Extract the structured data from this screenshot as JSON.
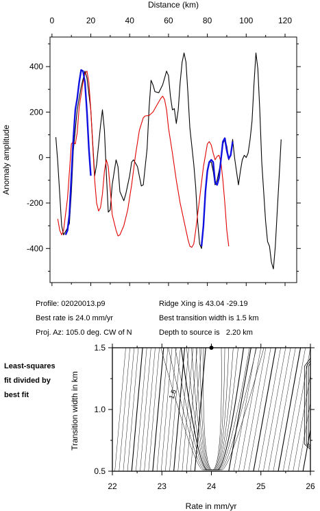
{
  "info": {
    "profile": "Profile: 02020013.p9",
    "ridge_xing": "Ridge Xing is 43.04 -29.19",
    "best_rate": "Best rate is 24.0 mm/yr",
    "best_width": "Best transition width is 1.5 km",
    "proj_az": "Proj. Az: 105.0 deg. CW of N",
    "depth": "Depth to source is   2.20 km"
  },
  "side_label": [
    "Least-squares",
    "fit divided by",
    "best fit"
  ],
  "chart_data": [
    {
      "type": "line",
      "xlabel": "Distance (km)",
      "ylabel": "Anomaly amplitude",
      "xlim": [
        -1,
        126
      ],
      "ylim": [
        -550,
        530
      ],
      "x_ticks": [
        0,
        20,
        40,
        60,
        80,
        100,
        120
      ],
      "y_ticks": [
        -400,
        -200,
        0,
        200,
        400
      ],
      "grid": false,
      "series": [
        {
          "color": "#000000",
          "role": "observed",
          "points": [
            [
              2,
              90
            ],
            [
              3,
              -20
            ],
            [
              5,
              -300
            ],
            [
              6,
              -340
            ],
            [
              8,
              -310
            ],
            [
              9,
              -290
            ],
            [
              10,
              -150
            ],
            [
              11,
              30
            ],
            [
              13,
              210
            ],
            [
              15,
              310
            ],
            [
              17,
              380
            ],
            [
              18,
              350
            ],
            [
              20,
              210
            ],
            [
              21,
              60
            ],
            [
              22,
              -80
            ],
            [
              23,
              -30
            ],
            [
              25,
              140
            ],
            [
              26,
              210
            ],
            [
              27,
              120
            ],
            [
              28,
              -70
            ],
            [
              29,
              -240
            ],
            [
              30,
              -230
            ],
            [
              31,
              -120
            ],
            [
              33,
              -10
            ],
            [
              34,
              -40
            ],
            [
              35,
              -150
            ],
            [
              37,
              -190
            ],
            [
              38,
              -160
            ],
            [
              40,
              -80
            ],
            [
              41,
              -20
            ],
            [
              42,
              -10
            ],
            [
              44,
              -40
            ],
            [
              46,
              -125
            ],
            [
              47,
              -120
            ],
            [
              49,
              40
            ],
            [
              50,
              220
            ],
            [
              51,
              340
            ],
            [
              52,
              320
            ],
            [
              53,
              290
            ],
            [
              55,
              285
            ],
            [
              57,
              320
            ],
            [
              59,
              380
            ],
            [
              60,
              360
            ],
            [
              61,
              270
            ],
            [
              62,
              210
            ],
            [
              63,
              215
            ],
            [
              64,
              150
            ],
            [
              65,
              210
            ],
            [
              66,
              330
            ],
            [
              67,
              420
            ],
            [
              68,
              460
            ],
            [
              69,
              420
            ],
            [
              70,
              280
            ],
            [
              71,
              130
            ],
            [
              73,
              -30
            ],
            [
              74,
              -130
            ],
            [
              75,
              -280
            ],
            [
              76,
              -380
            ],
            [
              77,
              -400
            ],
            [
              78,
              -300
            ],
            [
              79,
              -140
            ],
            [
              80,
              -60
            ],
            [
              81,
              -20
            ],
            [
              82,
              -20
            ],
            [
              83,
              -60
            ],
            [
              84,
              -120
            ],
            [
              85,
              -100
            ],
            [
              87,
              -20
            ],
            [
              88,
              60
            ],
            [
              89,
              80
            ],
            [
              90,
              50
            ],
            [
              91,
              -10
            ],
            [
              92,
              10
            ],
            [
              93,
              80
            ],
            [
              94,
              0
            ],
            [
              95,
              -60
            ],
            [
              96,
              -120
            ],
            [
              97,
              -60
            ],
            [
              98,
              -10
            ],
            [
              99,
              10
            ],
            [
              100,
              0
            ],
            [
              101,
              20
            ],
            [
              102,
              80
            ],
            [
              103,
              160
            ],
            [
              104,
              320
            ],
            [
              105,
              460
            ],
            [
              106,
              390
            ],
            [
              107,
              210
            ],
            [
              108,
              -20
            ],
            [
              109,
              -150
            ],
            [
              110,
              -280
            ],
            [
              111,
              -370
            ],
            [
              112,
              -390
            ],
            [
              113,
              -460
            ],
            [
              114,
              -490
            ],
            [
              115,
              -390
            ],
            [
              116,
              -230
            ],
            [
              117,
              -80
            ],
            [
              118,
              80
            ]
          ]
        },
        {
          "color": "#e00000",
          "role": "model",
          "points": [
            [
              3,
              -270
            ],
            [
              4,
              -320
            ],
            [
              5,
              -340
            ],
            [
              6,
              -320
            ],
            [
              8,
              -180
            ],
            [
              10,
              60
            ],
            [
              11,
              70
            ],
            [
              12,
              60
            ],
            [
              13,
              110
            ],
            [
              14,
              220
            ],
            [
              16,
              330
            ],
            [
              17,
              370
            ],
            [
              18,
              380
            ],
            [
              19,
              330
            ],
            [
              20,
              210
            ],
            [
              21,
              50
            ],
            [
              22,
              -100
            ],
            [
              23,
              -200
            ],
            [
              24,
              -235
            ],
            [
              25,
              -220
            ],
            [
              26,
              -160
            ],
            [
              27,
              -60
            ],
            [
              28,
              -10
            ],
            [
              29,
              -40
            ],
            [
              30,
              -140
            ],
            [
              31,
              -250
            ],
            [
              33,
              -320
            ],
            [
              34,
              -345
            ],
            [
              35,
              -340
            ],
            [
              37,
              -300
            ],
            [
              39,
              -230
            ],
            [
              41,
              -120
            ],
            [
              43,
              10
            ],
            [
              45,
              120
            ],
            [
              47,
              175
            ],
            [
              48,
              183
            ],
            [
              50,
              185
            ],
            [
              52,
              200
            ],
            [
              54,
              230
            ],
            [
              56,
              260
            ],
            [
              57,
              270
            ],
            [
              58,
              255
            ],
            [
              59,
              210
            ],
            [
              60,
              130
            ],
            [
              62,
              20
            ],
            [
              64,
              -100
            ],
            [
              66,
              -200
            ],
            [
              68,
              -280
            ],
            [
              70,
              -360
            ],
            [
              71,
              -390
            ],
            [
              72,
              -395
            ],
            [
              73,
              -380
            ],
            [
              74,
              -320
            ],
            [
              76,
              -180
            ],
            [
              77,
              -110
            ],
            [
              78,
              -40
            ],
            [
              79,
              10
            ],
            [
              80,
              60
            ],
            [
              81,
              70
            ],
            [
              82,
              55
            ],
            [
              83,
              20
            ],
            [
              84,
              -10
            ],
            [
              85,
              5
            ],
            [
              86,
              10
            ],
            [
              87,
              -20
            ],
            [
              88,
              -100
            ],
            [
              89,
              -200
            ],
            [
              90,
              -320
            ],
            [
              91,
              -390
            ]
          ]
        },
        {
          "color": "#1010e0",
          "role": "fit window",
          "points": [
            [
              7,
              -340
            ],
            [
              8,
              -320
            ],
            [
              9,
              -250
            ],
            [
              10,
              -80
            ],
            [
              11,
              80
            ],
            [
              12,
              210
            ],
            [
              13,
              260
            ],
            [
              14,
              330
            ],
            [
              15,
              385
            ],
            [
              16,
              380
            ],
            [
              17,
              330
            ],
            [
              18,
              200
            ],
            [
              19,
              40
            ],
            [
              20,
              -80
            ]
          ]
        },
        {
          "color": "#1010e0",
          "role": "fit window",
          "points": [
            [
              77,
              -390
            ],
            [
              78,
              -300
            ],
            [
              79,
              -150
            ],
            [
              80,
              -60
            ],
            [
              81,
              -20
            ],
            [
              82,
              -10
            ],
            [
              83,
              -20
            ],
            [
              84,
              -110
            ],
            [
              85,
              -120
            ],
            [
              86,
              -90
            ],
            [
              87,
              -10
            ],
            [
              88,
              70
            ],
            [
              89,
              85
            ],
            [
              90,
              30
            ],
            [
              91,
              -5
            ],
            [
              92,
              10
            ],
            [
              93,
              70
            ]
          ]
        }
      ],
      "marker": {
        "x": 24.0,
        "y": 1.5
      }
    },
    {
      "type": "contour",
      "xlabel": "Rate in mm/yr",
      "ylabel": "Transition width in km",
      "xlim": [
        22,
        26
      ],
      "ylim": [
        0.5,
        1.5
      ],
      "x_ticks": [
        22,
        23,
        24,
        25,
        26
      ],
      "y_ticks": [
        0.5,
        1.0,
        1.5
      ],
      "contour_label": "1.5",
      "best_fit": {
        "rate": 24.0,
        "width": 1.5
      }
    }
  ]
}
